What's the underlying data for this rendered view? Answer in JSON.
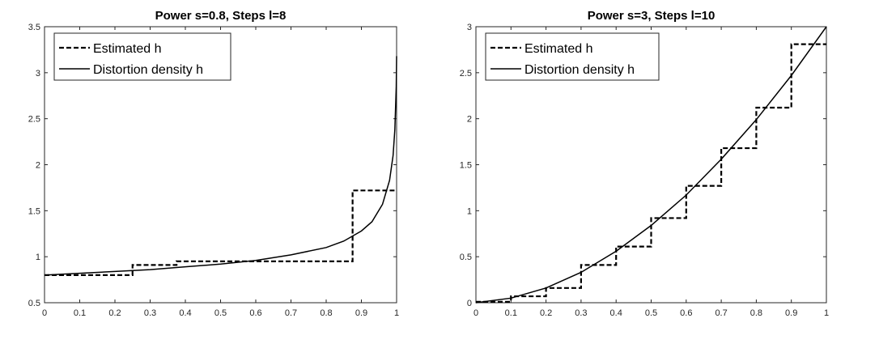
{
  "chart_data": [
    {
      "type": "line",
      "title": "Power s=0.8, Steps l=8",
      "xlabel": "",
      "ylabel": "",
      "xlim": [
        0,
        1
      ],
      "ylim": [
        0.5,
        3.5
      ],
      "x_ticks": [
        "0",
        "0.1",
        "0.2",
        "0.3",
        "0.4",
        "0.5",
        "0.6",
        "0.7",
        "0.8",
        "0.9",
        "1"
      ],
      "y_ticks": [
        "0.5",
        "1",
        "1.5",
        "2",
        "2.5",
        "3",
        "3.5"
      ],
      "grid": false,
      "legend_position": "top-left",
      "series": [
        {
          "name": "Estimated h",
          "style": "dashed-step",
          "x": [
            0,
            0.25,
            0.25,
            0.375,
            0.375,
            0.875,
            0.875,
            1.0
          ],
          "y": [
            0.8,
            0.8,
            0.91,
            0.91,
            0.95,
            0.95,
            1.72,
            1.72
          ]
        },
        {
          "name": "Distortion density h",
          "style": "solid",
          "x": [
            0,
            0.1,
            0.2,
            0.3,
            0.4,
            0.5,
            0.6,
            0.7,
            0.8,
            0.85,
            0.9,
            0.93,
            0.96,
            0.98,
            0.99,
            0.995,
            0.999,
            1.0
          ],
          "y": [
            0.8,
            0.82,
            0.84,
            0.86,
            0.89,
            0.92,
            0.96,
            1.02,
            1.1,
            1.17,
            1.28,
            1.38,
            1.57,
            1.83,
            2.1,
            2.38,
            2.85,
            3.18
          ]
        }
      ]
    },
    {
      "type": "line",
      "title": "Power s=3, Steps l=10",
      "xlabel": "",
      "ylabel": "",
      "xlim": [
        0,
        1
      ],
      "ylim": [
        0,
        3
      ],
      "x_ticks": [
        "0",
        "0.1",
        "0.2",
        "0.3",
        "0.4",
        "0.5",
        "0.6",
        "0.7",
        "0.8",
        "0.9",
        "1"
      ],
      "y_ticks": [
        "0",
        "0.5",
        "1",
        "1.5",
        "2",
        "2.5",
        "3"
      ],
      "grid": false,
      "legend_position": "top-left",
      "series": [
        {
          "name": "Estimated h",
          "style": "dashed-step",
          "x": [
            0,
            0.1,
            0.1,
            0.2,
            0.2,
            0.3,
            0.3,
            0.4,
            0.4,
            0.5,
            0.5,
            0.6,
            0.6,
            0.7,
            0.7,
            0.8,
            0.8,
            0.9,
            0.9,
            1.0
          ],
          "y": [
            0.01,
            0.01,
            0.07,
            0.07,
            0.16,
            0.16,
            0.41,
            0.41,
            0.61,
            0.61,
            0.92,
            0.92,
            1.27,
            1.27,
            1.68,
            1.68,
            2.12,
            2.12,
            2.81,
            2.81
          ]
        },
        {
          "name": "Distortion density h",
          "style": "solid",
          "x": [
            0,
            0.1,
            0.2,
            0.3,
            0.4,
            0.5,
            0.6,
            0.7,
            0.8,
            0.9,
            1.0
          ],
          "y": [
            0.0,
            0.05,
            0.16,
            0.33,
            0.56,
            0.84,
            1.17,
            1.56,
            1.99,
            2.47,
            3.0
          ]
        }
      ]
    }
  ]
}
